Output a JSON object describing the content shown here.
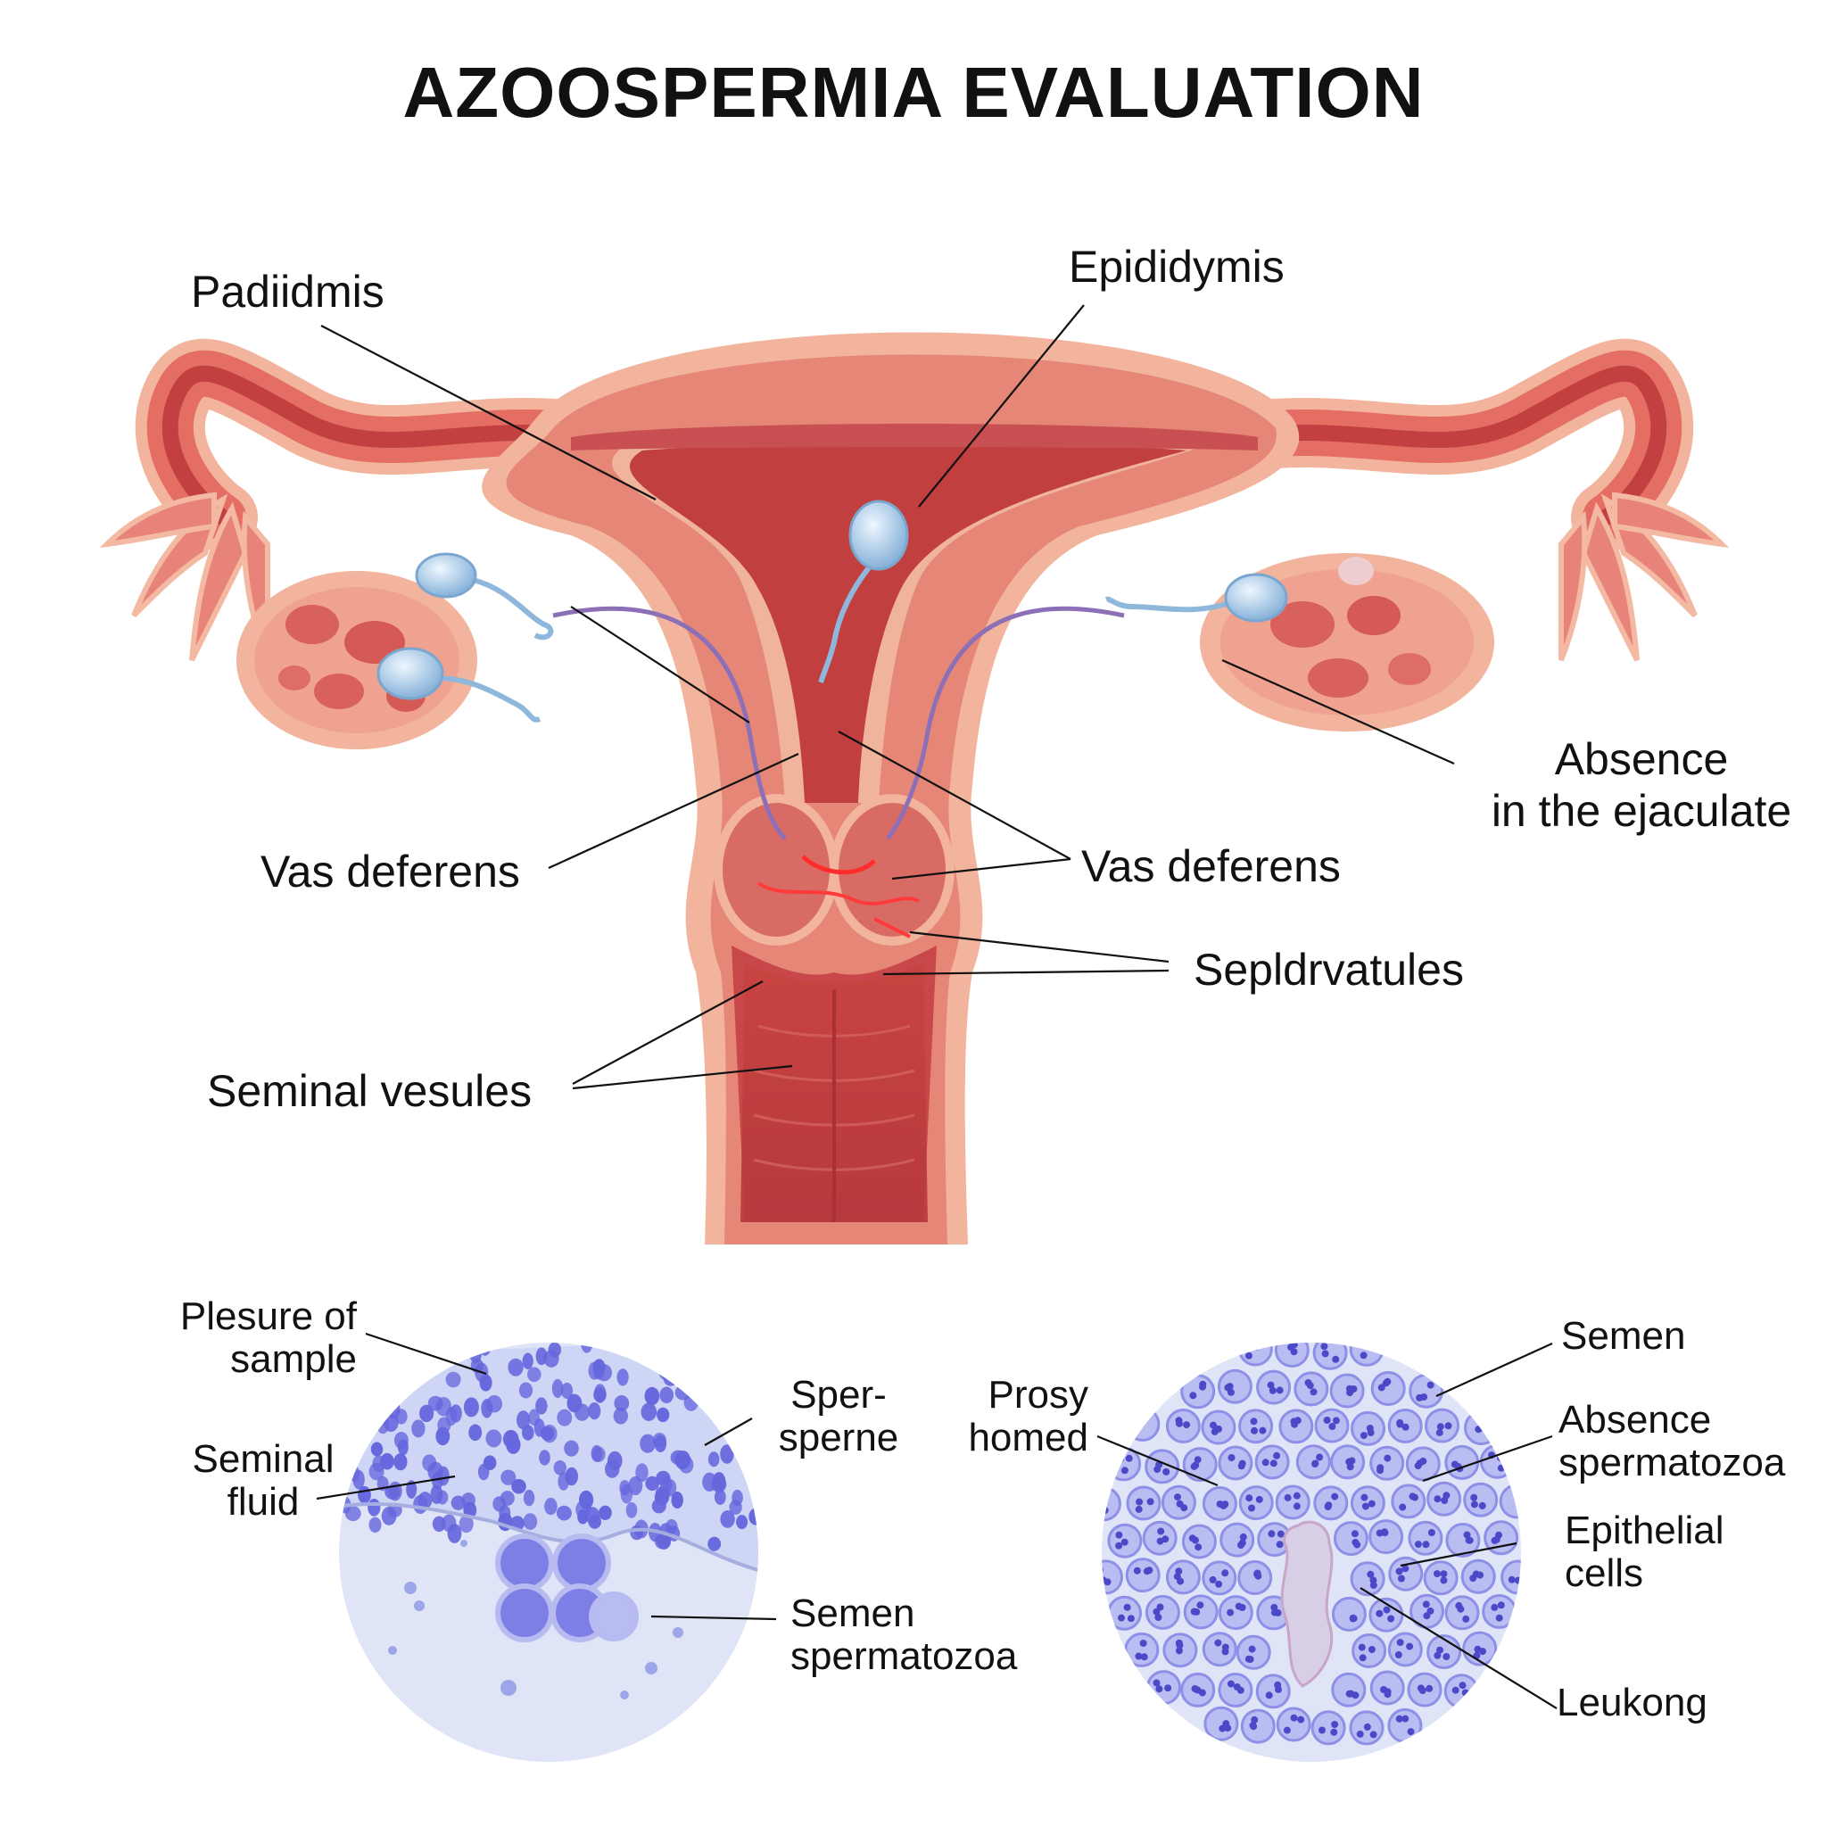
{
  "title": "AZOOSPERMIA EVALUATION",
  "labels": {
    "padiidmis": "Padiidmis",
    "epididymis": "Epididymis",
    "absence_line1": "Absence",
    "absence_line2": "in the ejaculate",
    "vas_left": "Vas deferens",
    "vas_right": "Vas deferens",
    "sepldrvatules": "Sepldrvatules",
    "seminal_vesules": "Seminal vesules",
    "plesure_line1": "Plesure of",
    "plesure_line2": "sample",
    "seminal_fluid_line1": "Seminal",
    "seminal_fluid_line2": "fluid",
    "sper_line1": "Sper-",
    "sper_line2": "sperne",
    "semen_sperm_line1": "Semen",
    "semen_sperm_line2": "spermatozoa",
    "prosy_line1": "Prosy",
    "prosy_line2": "homed",
    "semen": "Semen",
    "absence_sperm_line1": "Absence",
    "absence_sperm_line2": "spermatozoa",
    "epithelial_line1": "Epithelial",
    "epithelial_line2": "cells",
    "leukong": "Leukong"
  },
  "colors": {
    "tissue_outer": "#f2b49c",
    "tissue_mid": "#e5786c",
    "tissue_dark": "#c94744",
    "cavity": "#b8353a",
    "sperm": "#9cc4e4",
    "micro_bg": "#dde3f6",
    "micro_cell": "#6a68d8"
  }
}
